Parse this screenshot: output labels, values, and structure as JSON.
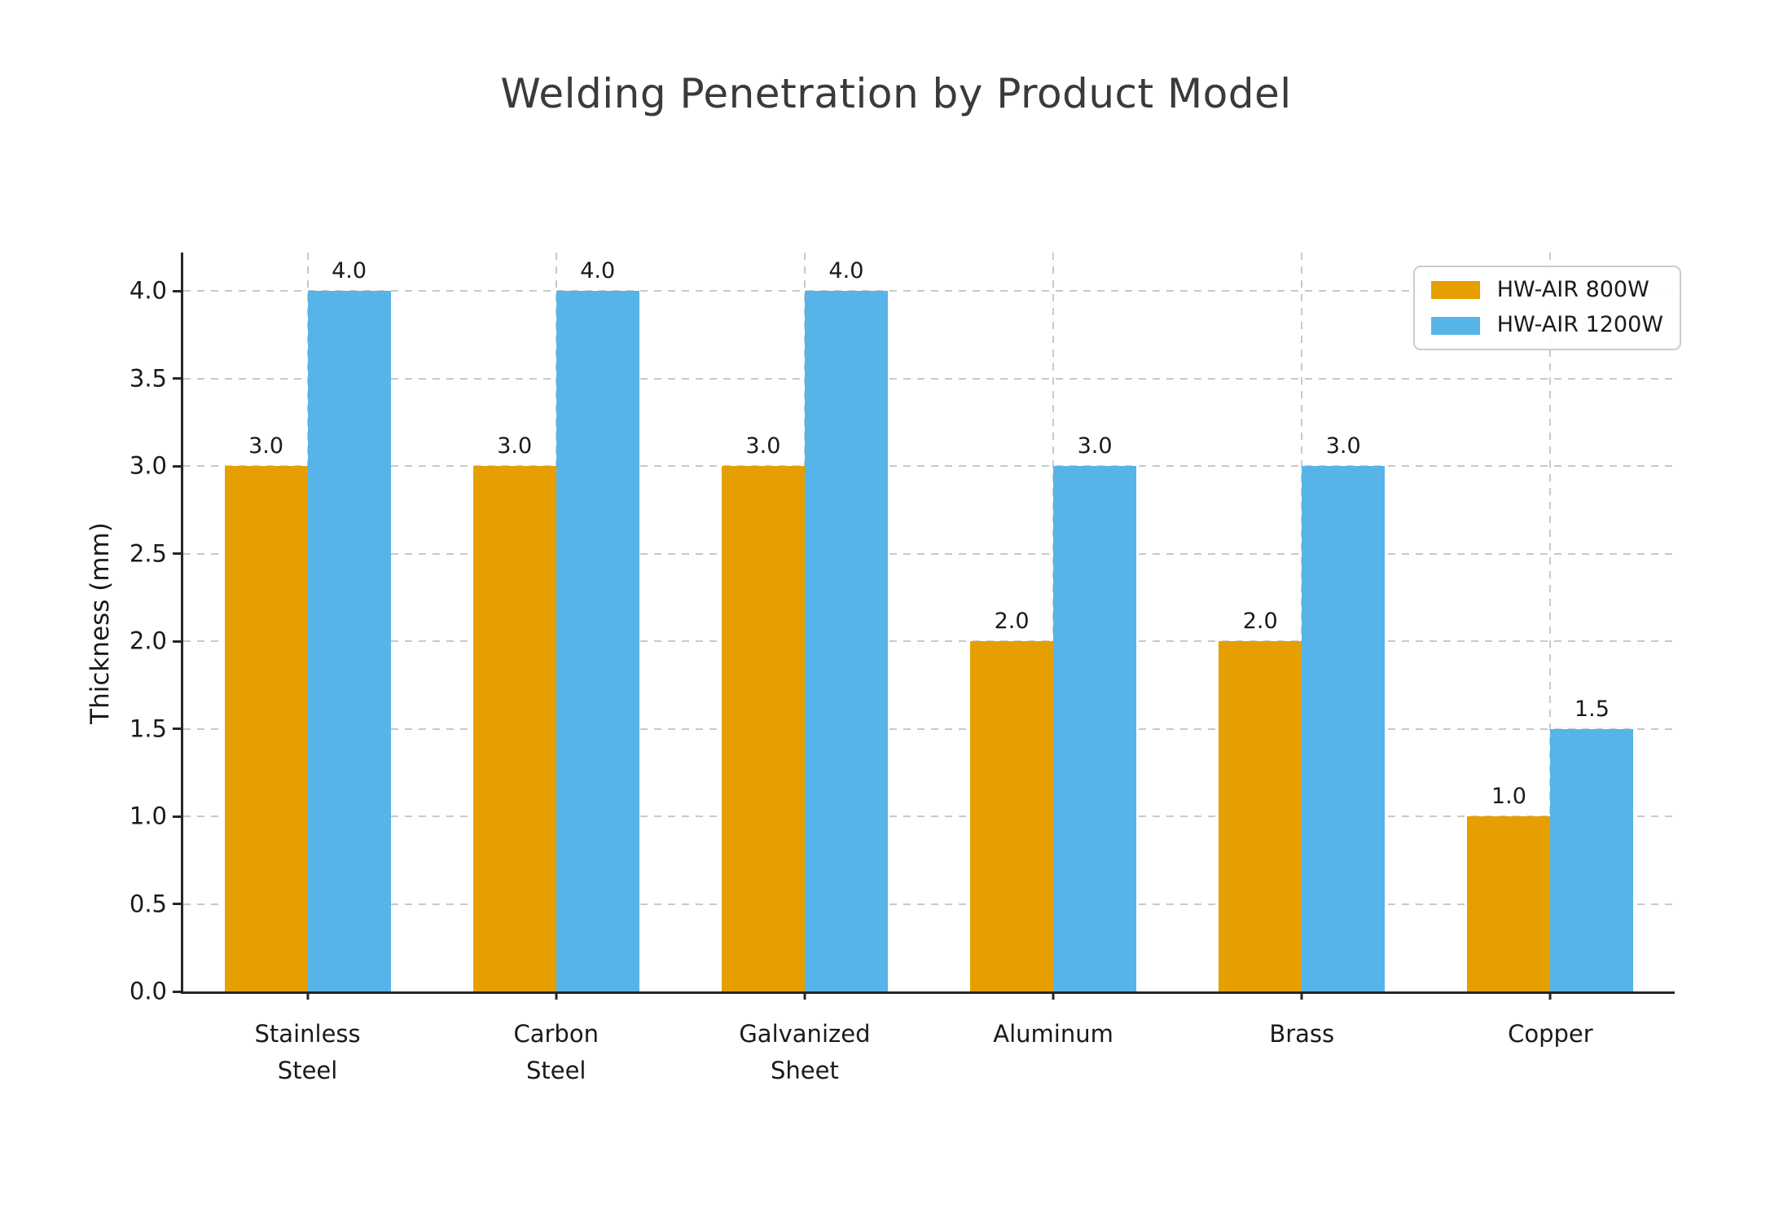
{
  "figure": {
    "background": "#ffffff"
  },
  "chart_data": {
    "type": "bar",
    "title": "Welding Penetration by Product Model",
    "ylabel": "Thickness (mm)",
    "xlabel": "",
    "categories": [
      "Stainless\nSteel",
      "Carbon\nSteel",
      "Galvanized\nSheet",
      "Aluminum",
      "Brass",
      "Copper"
    ],
    "series": [
      {
        "name": "HW-AIR 800W",
        "color": "#E69F00",
        "values": [
          3.0,
          3.0,
          3.0,
          2.0,
          2.0,
          1.0
        ]
      },
      {
        "name": "HW-AIR 1200W",
        "color": "#56B4E9",
        "values": [
          4.0,
          4.0,
          4.0,
          3.0,
          3.0,
          1.5
        ]
      }
    ],
    "ylim": [
      0,
      4.22
    ],
    "yticks": [
      0.0,
      0.5,
      1.0,
      1.5,
      2.0,
      2.5,
      3.0,
      3.5,
      4.0
    ],
    "grid": true,
    "grid_color": "#c9c9c9",
    "axis_color": "#262626",
    "title_color": "#3a3a3a",
    "tick_label_color": "#1a1a1a",
    "legend_position": "upper right",
    "value_labels": true
  }
}
